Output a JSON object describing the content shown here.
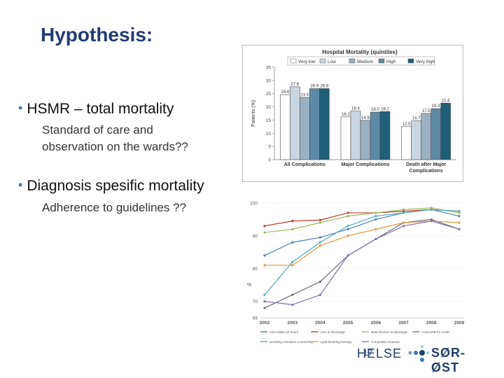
{
  "slide": {
    "title": "Hypothesis:",
    "bullets": [
      {
        "text": "HSMR – total mortality",
        "sub": [
          "Standard of care and",
          "observation on the wards??"
        ]
      },
      {
        "text": "Diagnosis spesific mortality",
        "sub": [
          "Adherence to guidelines ??"
        ]
      }
    ]
  },
  "footer": {
    "logo_left": "HELSE",
    "page_number": "17",
    "logo_right": "SØR-ØST"
  },
  "chart_data": [
    {
      "type": "bar",
      "title": "Hospital Mortality (quintiles)",
      "ylabel": "Patients (%)",
      "ylim": [
        0,
        35
      ],
      "yticks": [
        0,
        5,
        10,
        15,
        20,
        25,
        30,
        35
      ],
      "categories": [
        "All Complications",
        "Major Complications",
        "Death after Major Complications"
      ],
      "series": [
        {
          "name": "Very low",
          "color": "#ffffff",
          "values": [
            24.6,
            16.2,
            12.5
          ]
        },
        {
          "name": "Low",
          "color": "#c7d6e0",
          "values": [
            27.6,
            18.4,
            14.7
          ]
        },
        {
          "name": "Medium",
          "color": "#9ab1c2",
          "values": [
            23.5,
            14.9,
            17.5
          ]
        },
        {
          "name": "High",
          "color": "#5d8aa6",
          "values": [
            26.9,
            18.0,
            19.3
          ]
        },
        {
          "name": "Very high",
          "color": "#1f5f7a",
          "values": [
            26.9,
            18.2,
            21.4
          ]
        }
      ],
      "value_labels": [
        [
          "24.6",
          "16.2",
          "12.5"
        ],
        [
          "27.6",
          "18.4",
          "14.7"
        ],
        [
          "23.5",
          "14.9",
          "17.5"
        ],
        [
          "26.9",
          "18.0",
          "19.3"
        ],
        [
          "26.9",
          "18.2",
          "21.4"
        ]
      ],
      "legend_position": "top",
      "grid": false
    },
    {
      "type": "line",
      "ylabel": "%",
      "ylim": [
        65,
        100
      ],
      "yticks": [
        65,
        70,
        80,
        90,
        100
      ],
      "ytick_labels": [
        "65",
        "70",
        "80",
        "90",
        "100"
      ],
      "x": [
        "2002",
        "2003",
        "2004",
        "2005",
        "2006",
        "2007",
        "2008",
        "2009"
      ],
      "series": [
        {
          "name": "ASA within 24 hours",
          "color": "#4e7fb6",
          "values": [
            84,
            88,
            89.5,
            92,
            95,
            97,
            98,
            96
          ]
        },
        {
          "name": "ASA at discharge",
          "color": "#c0392b",
          "values": [
            93,
            94.5,
            94.8,
            97,
            97,
            97.5,
            98,
            97.5
          ]
        },
        {
          "name": "Beta-blocker at discharge",
          "color": "#9bbb59",
          "values": [
            91,
            92,
            94,
            96,
            97,
            98,
            98.5,
            97
          ]
        },
        {
          "name": "ACE/ARB for LVSD",
          "color": "#6e6e7e",
          "values": [
            68,
            72,
            76,
            84,
            89,
            94,
            95,
            92
          ]
        },
        {
          "name": "Smoking cessation counseling",
          "color": "#4bacc6",
          "values": [
            72,
            82,
            88,
            93,
            96,
            97,
            98,
            97.5
          ]
        },
        {
          "name": "Lipid-lowering therapy",
          "color": "#e8963a",
          "values": [
            81,
            81,
            87,
            90,
            92,
            94,
            94.5,
            94
          ]
        },
        {
          "name": "Composite measure",
          "color": "#7f6eb3",
          "values": [
            70,
            69,
            72,
            84,
            89,
            93,
            94.5,
            92
          ]
        }
      ],
      "legend_position": "bottom",
      "grid": true
    }
  ]
}
